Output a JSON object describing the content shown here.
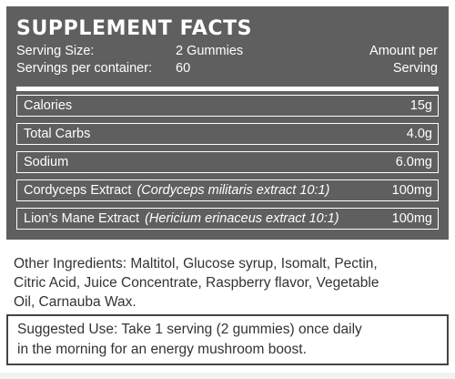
{
  "facts": {
    "title": "SUPPLEMENT FACTS",
    "serving_size_label": "Serving Size:",
    "serving_size_value": "2 Gummies",
    "servings_label": "Servings per container:",
    "servings_value": "60",
    "amount_line1": "Amount per",
    "amount_line2": "Serving",
    "rows": [
      {
        "name": "Calories",
        "latin": "",
        "amount": "15g"
      },
      {
        "name": "Total Carbs",
        "latin": "",
        "amount": "4.0g"
      },
      {
        "name": "Sodium",
        "latin": "",
        "amount": "6.0mg"
      },
      {
        "name": "Cordyceps Extract",
        "latin": "(Cordyceps militaris extract 10:1)",
        "amount": "100mg"
      },
      {
        "name": "Lion’s Mane Extract",
        "latin": "(Hericium erinaceus extract 10:1)",
        "amount": "100mg"
      }
    ]
  },
  "ingredients": {
    "line1": "Other Ingredients: Maltitol, Glucose syrup, Isomalt, Pectin,",
    "line2": "Citric Acid, Juice Concentrate, Raspberry flavor, Vegetable",
    "line3": "Oil, Carnauba Wax."
  },
  "usage": {
    "line1": "Suggested Use: Take 1 serving (2 gummies) once daily",
    "line2": "in the morning for an energy mushroom boost."
  },
  "colors": {
    "panel": "#5f5f5f",
    "text_on_panel": "#ffffff",
    "body_text": "#333333"
  }
}
